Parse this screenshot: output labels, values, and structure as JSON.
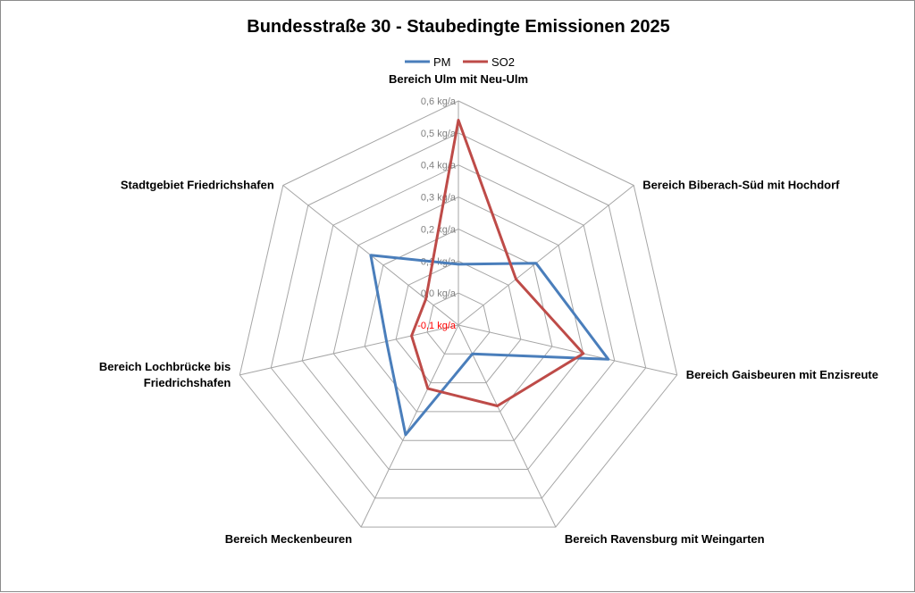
{
  "chart_data": {
    "type": "radar",
    "title": "Bundesstraße 30 - Staubedingte Emissionen 2025",
    "categories": [
      "Bereich Ulm mit Neu-Ulm",
      "Bereich Biberach-Süd mit Hochdorf",
      "Bereich Gaisbeuren mit Enzisreute",
      "Bereich Ravensburg mit Weingarten",
      "Bereich Meckenbeuren",
      "Bereich Lochbrücke bis Friedrichshafen",
      "Stadtgebiet Friedrichshafen"
    ],
    "category_label_lines": [
      [
        "Bereich Ulm mit Neu-Ulm"
      ],
      [
        "Bereich Biberach-Süd mit Hochdorf"
      ],
      [
        "Bereich Gaisbeuren mit Enzisreute"
      ],
      [
        "Bereich Ravensburg mit Weingarten"
      ],
      [
        "Bereich Meckenbeuren"
      ],
      [
        "Bereich Lochbrücke bis",
        "Friedrichshafen"
      ],
      [
        "Stadtgebiet Friedrichshafen"
      ]
    ],
    "series": [
      {
        "name": "PM",
        "color": "#4a7ebb",
        "values": [
          0.09,
          0.21,
          0.38,
          0.0,
          0.28,
          0.13,
          0.25
        ]
      },
      {
        "name": "SO2",
        "color": "#be4b48",
        "values": [
          0.54,
          0.13,
          0.3,
          0.18,
          0.12,
          0.05,
          0.03
        ]
      }
    ],
    "r_ticks": [
      "-0,1 kg/a",
      "0,0 kg/a",
      "0,1 kg/a",
      "0,2 kg/a",
      "0,3 kg/a",
      "0,4 kg/a",
      "0,5 kg/a",
      "0,6 kg/a"
    ],
    "r_range": [
      -0.1,
      0.6
    ],
    "r_step": 0.1,
    "grid": true,
    "legend_position": "top",
    "grid_color": "#a6a6a6",
    "tick_color": "#7f7f7f",
    "negative_tick_color": "#ff0000"
  }
}
